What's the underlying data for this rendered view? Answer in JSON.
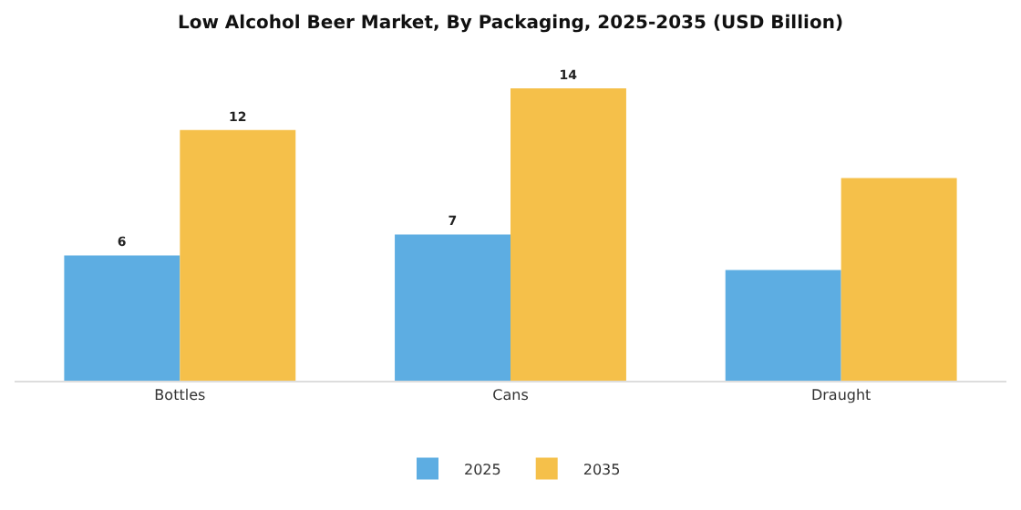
{
  "chart_data": {
    "type": "bar",
    "title": "Low Alcohol Beer Market, By Packaging, 2025-2035 (USD Billion)",
    "categories": [
      "Bottles",
      "Cans",
      "Draught"
    ],
    "series": [
      {
        "name": "2025",
        "color": "#5dade2",
        "values": [
          6,
          7,
          5.3
        ],
        "value_labels": [
          "6",
          "7",
          null
        ]
      },
      {
        "name": "2035",
        "color": "#f5c04a",
        "values": [
          12,
          14,
          9.7
        ],
        "value_labels": [
          "12",
          "14",
          null
        ]
      }
    ],
    "legend": "bottom"
  }
}
